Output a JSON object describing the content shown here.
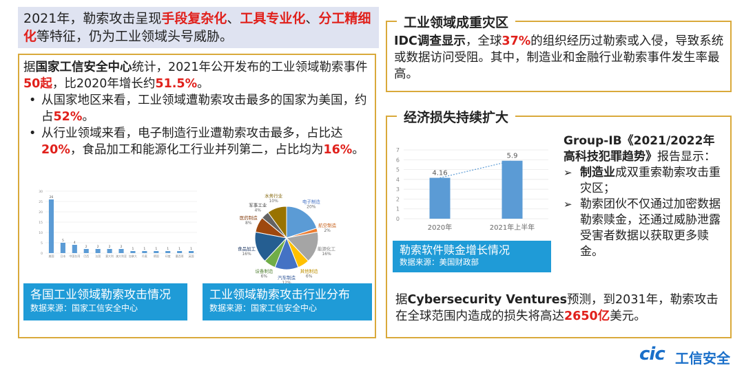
{
  "summary": {
    "p1": "2021年，勒索攻击呈现",
    "h1": "手段复杂化",
    "sep1": "、",
    "h2": "工具专业化",
    "sep2": "、",
    "h3": "分工精细化",
    "p2": "等特征，仍为工业领域头号威胁。"
  },
  "left": {
    "intro": {
      "p1": "据",
      "org": "国家工信安全中心",
      "p2": "统计，2021年公开发布的工业领域勒索事件",
      "num": "50起",
      "p3": "，比2020年增长约",
      "pct": "51.5%",
      "p4": "。"
    },
    "bullet1": {
      "p1": "从国家地区来看，工业领域遭勒索攻击最多的国家为美国，约占",
      "pct": "52%",
      "p2": "。"
    },
    "bullet2": {
      "p1": "从行业领域来看，电子制造行业遭勒索攻击最多，占比达",
      "pct1": "20%",
      "p2": "，食品加工和能源化工行业并列第二，占比均为",
      "pct2": "16%",
      "p3": "。"
    }
  },
  "bar_caption": {
    "title": "各国工业领域勒索攻击情况",
    "source": "数据来源：国家工信安全中心"
  },
  "pie_caption": {
    "title": "工业领域勒索攻击行业分布",
    "source": "数据来源：国家工信安全中心"
  },
  "idc": {
    "heading": "工业领域成重灾区",
    "org": "IDC调查显示",
    "p1": "，全球",
    "pct": "37%",
    "p2": "的组织经历过勒索或入侵，导致系统或数据访问受阻。其中，制造业和金融行业勒索事件发生率最高。"
  },
  "loss": {
    "heading": "经济损失持续扩大",
    "mini_caption": {
      "title": "勒索软件赎金增长情况",
      "source": "数据来源：美国财政部"
    },
    "groupib": {
      "title": "Group-IB《2021/2022年高科技犯罪趋势》",
      "p1": "报告显示：",
      "b1_bold": "制造业",
      "b1_rest": "成双重索勒索攻击重灾区；",
      "b2": "勒索团伙不仅通过加密数据勒索赎金，还通过威胁泄露受害者数据以获取更多赎金。"
    },
    "cv": {
      "p1": "据",
      "org": "Cybersecurity Ventures",
      "p2": "预测，到2031年，勒索攻击在全球范围内造成的损失将高达",
      "amt": "2650亿",
      "p3": "美元。"
    }
  },
  "logo": {
    "mark": "cic",
    "text": "工信安全"
  },
  "chart_data": [
    {
      "type": "bar",
      "categories": [
        "美国",
        "日本",
        "中国台湾",
        "巴西",
        "法国",
        "意大利",
        "澳大利亚",
        "加拿大",
        "丹麦",
        "德国",
        "印度",
        "墨西哥",
        "英国"
      ],
      "values": [
        26,
        5,
        4,
        2,
        2,
        2,
        2,
        1,
        1,
        1,
        1,
        1,
        1
      ],
      "ylim": [
        0,
        30
      ],
      "yticks": [
        0,
        5,
        10,
        15,
        20,
        25,
        30
      ],
      "color": "#5b9bd5"
    },
    {
      "type": "pie",
      "labels": [
        "电子制造",
        "航空制造",
        "能源化工",
        "其他制造",
        "汽车制造",
        "设备制造",
        "食品加工",
        "医药制造",
        "军事工业",
        "水务行业"
      ],
      "values": [
        20,
        2,
        16,
        6,
        12,
        6,
        16,
        8,
        4,
        10
      ],
      "value_labels": [
        "20%",
        "2%",
        "16%",
        "6%",
        "12%",
        "6%",
        "16%",
        "8%",
        "4%",
        "10%"
      ],
      "colors": [
        "#5b9bd5",
        "#ed7d31",
        "#a5a5a5",
        "#ffc000",
        "#4472c4",
        "#70ad47",
        "#255e91",
        "#9e480e",
        "#636363",
        "#997300"
      ],
      "label_colors": [
        "#4472c4",
        "#c55a11",
        "#7f7f7f",
        "#bf9000",
        "#2f5597",
        "#548235",
        "#1f3864",
        "#843c0c",
        "#404040",
        "#7f6000"
      ]
    },
    {
      "type": "bar",
      "categories": [
        "2020年",
        "2021年上半年"
      ],
      "values": [
        4.16,
        5.9
      ],
      "value_labels": [
        "4.16",
        "5.9"
      ],
      "ylim": [
        0,
        7
      ],
      "yticks": [
        0,
        1,
        2,
        3,
        4,
        5,
        6,
        7
      ],
      "trendline": true,
      "color": "#5b9bd5"
    }
  ]
}
